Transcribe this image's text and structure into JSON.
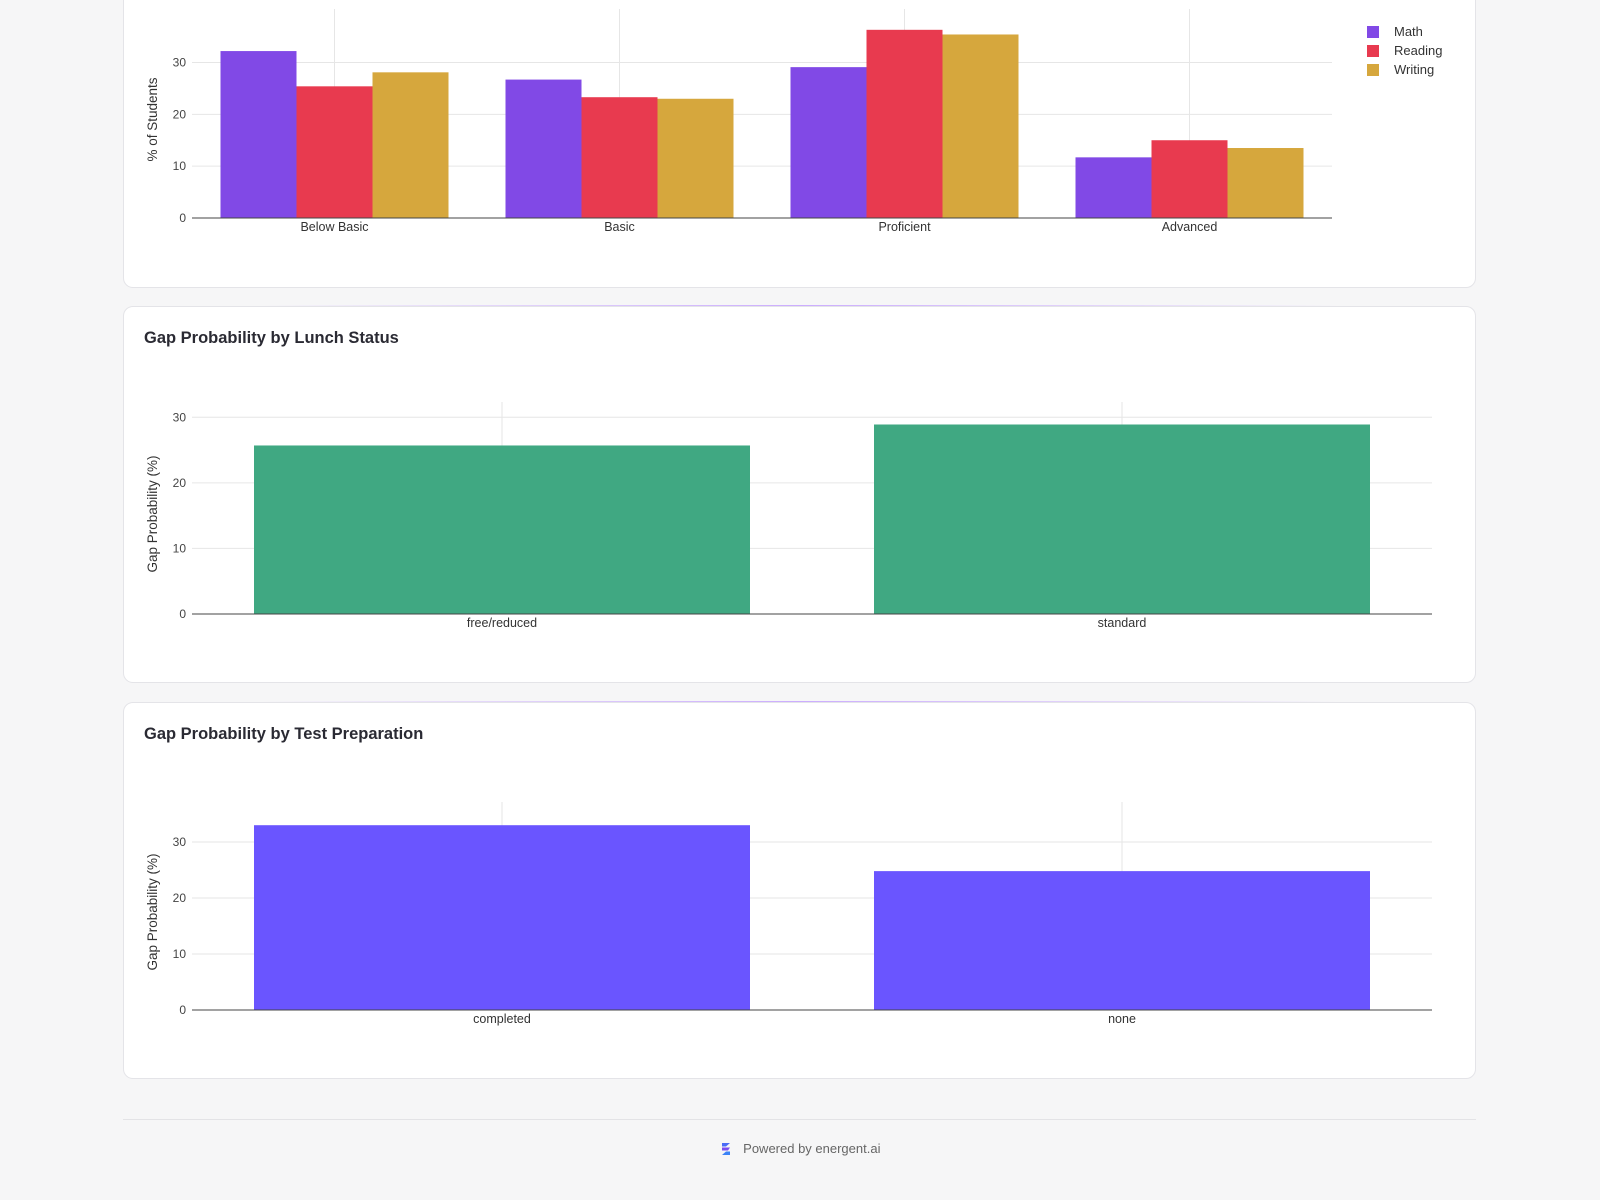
{
  "colors": {
    "math": "#8149e6",
    "reading": "#e83a4f",
    "writing": "#d6a73d",
    "lunch": "#40a882",
    "prep": "#6a55ff"
  },
  "footer": {
    "text": "Powered by energent.ai",
    "logo_icon": "energent-logo-icon"
  },
  "chart_data": [
    {
      "type": "bar",
      "title": "",
      "ylabel": "% of Students",
      "categories": [
        "Below Basic",
        "Basic",
        "Proficient",
        "Advanced"
      ],
      "series": [
        {
          "name": "Math",
          "values": [
            32.2,
            26.7,
            29.1,
            11.7
          ]
        },
        {
          "name": "Reading",
          "values": [
            25.4,
            23.3,
            36.3,
            15.0
          ]
        },
        {
          "name": "Writing",
          "values": [
            28.1,
            23.0,
            35.4,
            13.5
          ]
        }
      ],
      "ylim": [
        0,
        38
      ],
      "yticks": [
        0,
        10,
        20,
        30
      ],
      "grid": true,
      "legend": "top-right"
    },
    {
      "type": "bar",
      "title": "Gap Probability by Lunch Status",
      "ylabel": "Gap Probability (%)",
      "categories": [
        "free/reduced",
        "standard"
      ],
      "series": [
        {
          "values": [
            25.7,
            28.9
          ]
        }
      ],
      "ylim": [
        0,
        30.5
      ],
      "yticks": [
        0,
        10,
        20,
        30
      ],
      "grid": true
    },
    {
      "type": "bar",
      "title": "Gap Probability by Test Preparation",
      "ylabel": "Gap Probability (%)",
      "categories": [
        "completed",
        "none"
      ],
      "series": [
        {
          "values": [
            33.0,
            24.8
          ]
        }
      ],
      "ylim": [
        0,
        35
      ],
      "yticks": [
        0,
        10,
        20,
        30
      ],
      "grid": true
    }
  ]
}
